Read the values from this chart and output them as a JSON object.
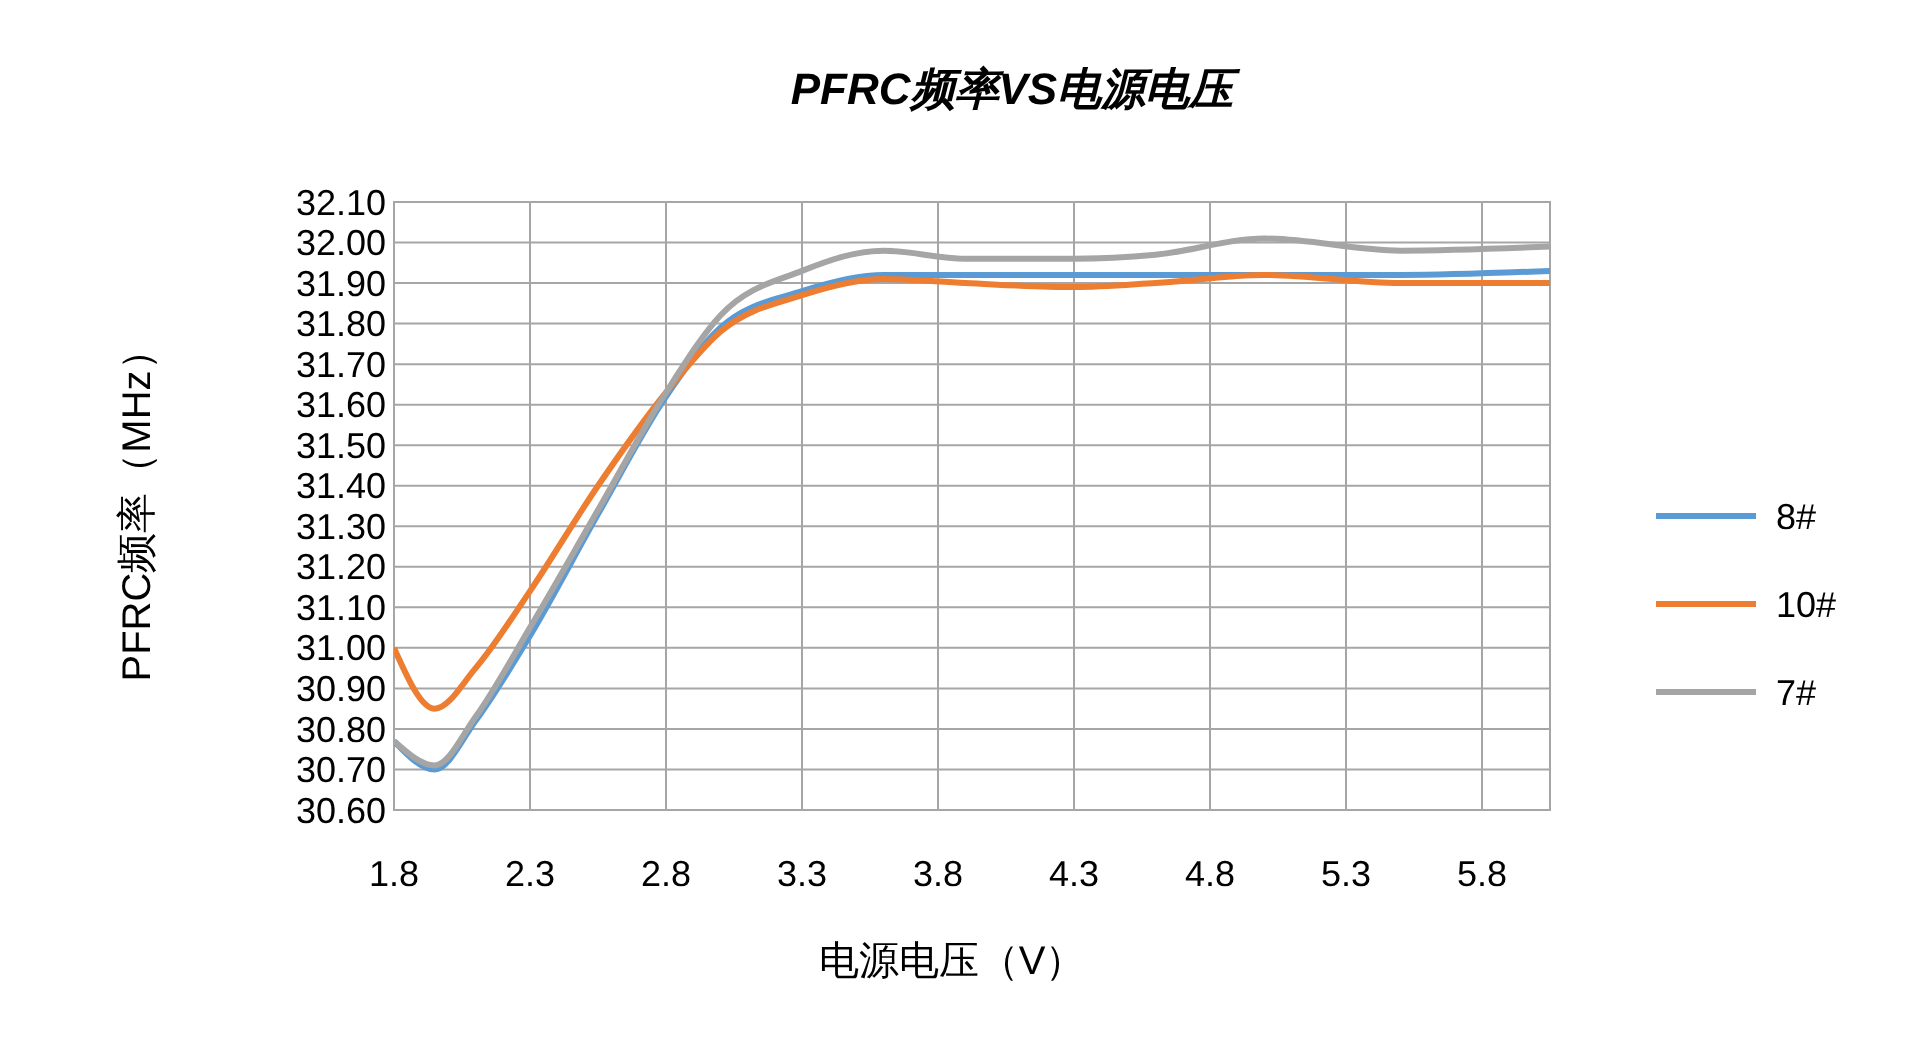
{
  "chart_data": {
    "type": "line",
    "title": "PFRC频率VS电源电压",
    "xlabel": "电源电压（V）",
    "ylabel": "PFRC频率（MHz）",
    "x": [
      1.8,
      1.95,
      2.1,
      2.3,
      2.55,
      2.8,
      3.0,
      3.3,
      3.6,
      3.9,
      4.3,
      4.6,
      5.0,
      5.5,
      6.05
    ],
    "series": [
      {
        "name": "8#",
        "color": "#5b9bd5",
        "values": [
          30.77,
          30.7,
          30.82,
          31.03,
          31.33,
          31.62,
          31.79,
          31.88,
          31.92,
          31.92,
          31.92,
          31.92,
          31.92,
          31.92,
          31.93
        ]
      },
      {
        "name": "10#",
        "color": "#ed7d31",
        "values": [
          31.0,
          30.85,
          30.95,
          31.14,
          31.4,
          31.63,
          31.78,
          31.87,
          31.91,
          31.9,
          31.89,
          31.9,
          31.92,
          31.9,
          31.9
        ]
      },
      {
        "name": "7#",
        "color": "#a5a5a5",
        "values": [
          30.77,
          30.71,
          30.83,
          31.05,
          31.34,
          31.63,
          31.82,
          31.93,
          31.98,
          31.96,
          31.96,
          31.97,
          32.01,
          31.98,
          31.99
        ]
      }
    ],
    "xlim": [
      1.8,
      6.05
    ],
    "xticks": [
      1.8,
      2.3,
      2.8,
      3.3,
      3.8,
      4.3,
      4.8,
      5.3,
      5.8
    ],
    "ylim": [
      30.6,
      32.1
    ],
    "yticks": [
      {
        "value": 30.6,
        "label": "30.60"
      },
      {
        "value": 30.7,
        "label": "30.70"
      },
      {
        "value": 30.8,
        "label": "30.80"
      },
      {
        "value": 30.9,
        "label": "30.90"
      },
      {
        "value": 31.0,
        "label": "31.00"
      },
      {
        "value": 31.1,
        "label": "31.10"
      },
      {
        "value": 31.2,
        "label": "31.20"
      },
      {
        "value": 31.3,
        "label": "31.30"
      },
      {
        "value": 31.4,
        "label": "31.40"
      },
      {
        "value": 31.5,
        "label": "31.50"
      },
      {
        "value": 31.6,
        "label": "31.60"
      },
      {
        "value": 31.7,
        "label": "31.70"
      },
      {
        "value": 31.8,
        "label": "31.80"
      },
      {
        "value": 31.9,
        "label": "31.90"
      },
      {
        "value": 32.0,
        "label": "32.00"
      },
      {
        "value": 32.1,
        "label": "32.10"
      }
    ],
    "grid": true,
    "legend": "right",
    "marker": "none",
    "line_style": "solid"
  }
}
